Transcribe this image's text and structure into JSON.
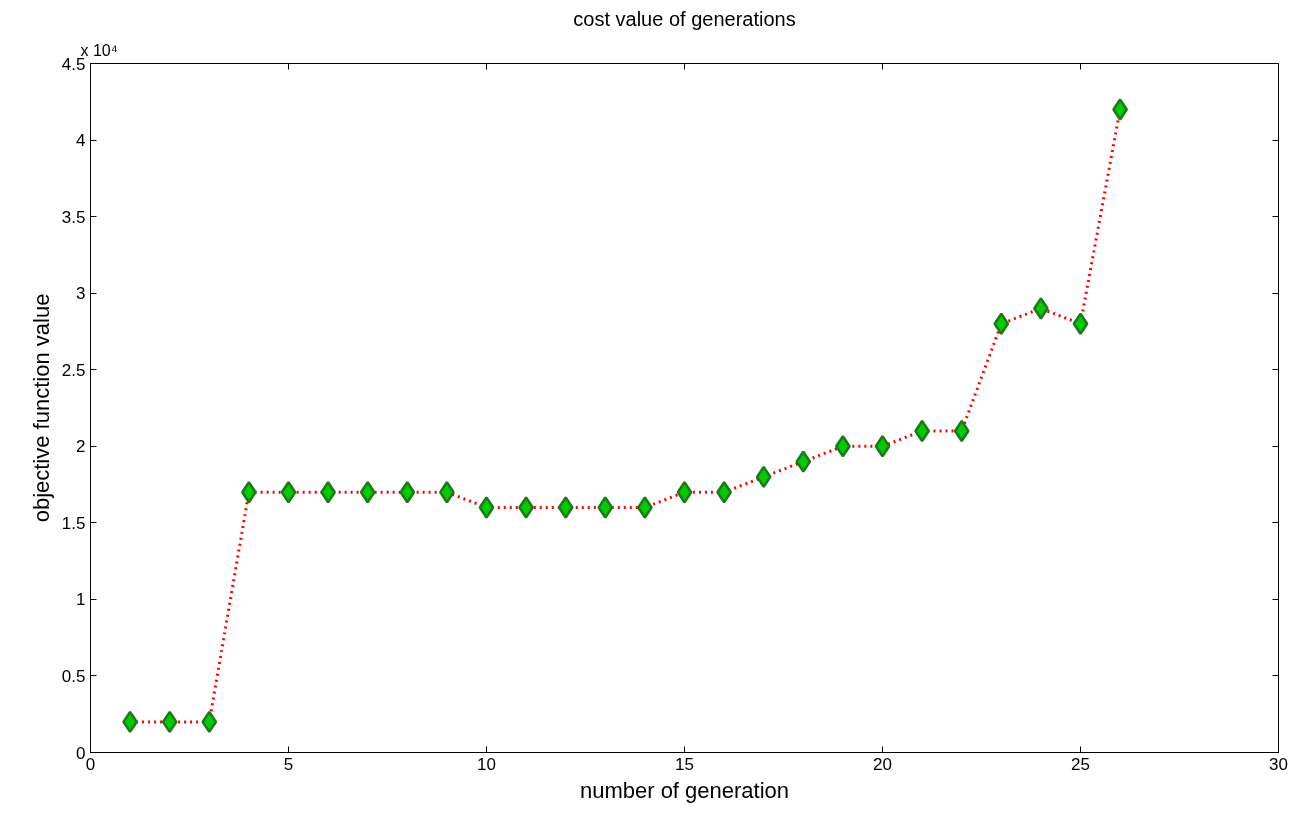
{
  "chart_data": {
    "type": "line",
    "title": "cost value of generations",
    "xlabel": "number of generation",
    "ylabel": "objective function value",
    "annotations": [
      "x 10⁴"
    ],
    "x": [
      1,
      2,
      3,
      4,
      5,
      6,
      7,
      8,
      9,
      10,
      11,
      12,
      13,
      14,
      15,
      16,
      17,
      18,
      19,
      20,
      21,
      22,
      23,
      24,
      25,
      26
    ],
    "series": [
      {
        "color": "#ff0000",
        "values": [
          0.2,
          0.2,
          0.2,
          1.7,
          1.7,
          1.7,
          1.7,
          1.7,
          1.7,
          1.6,
          1.6,
          1.6,
          1.6,
          1.6,
          1.7,
          1.7,
          1.8,
          1.9,
          2.0,
          2.0,
          2.1,
          2.1,
          2.8,
          2.9,
          2.8,
          4.2
        ]
      }
    ],
    "xlim": [
      0,
      30
    ],
    "xticks": [
      0,
      5,
      10,
      15,
      20,
      25,
      30
    ],
    "ylim": [
      0,
      4.5
    ],
    "yticks": [
      0,
      0.5,
      1,
      1.5,
      2,
      2.5,
      3,
      3.5,
      4,
      4.5
    ],
    "grid": false,
    "marker": "diamond",
    "line_style": "dotted"
  }
}
